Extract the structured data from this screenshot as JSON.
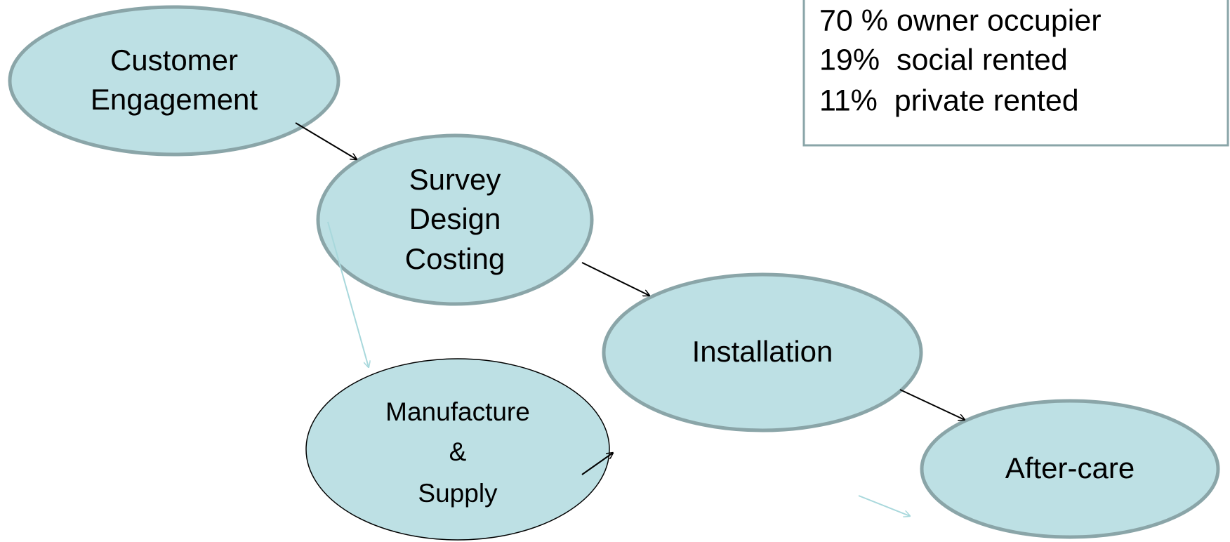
{
  "nodes": [
    {
      "label": [
        "Customer",
        "Engagement"
      ]
    },
    {
      "label": [
        "Survey",
        "Design",
        "Costing"
      ]
    },
    {
      "label": [
        "Installation"
      ]
    },
    {
      "label": [
        "Manufacture",
        "&",
        "Supply"
      ]
    },
    {
      "label": [
        "After-care"
      ]
    }
  ],
  "tenure_box": {
    "lines": [
      "70 % owner occupier",
      "19%  social rented",
      "11%  private rented"
    ]
  }
}
